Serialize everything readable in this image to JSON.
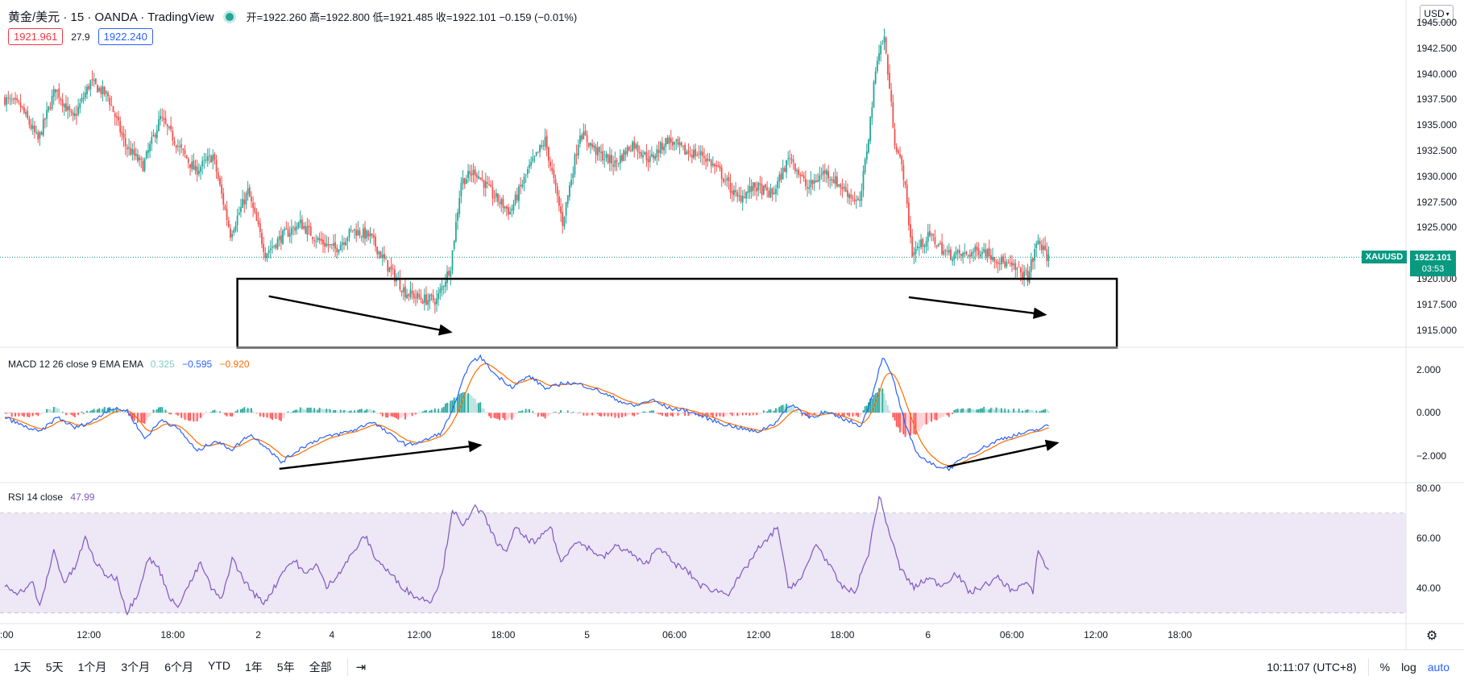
{
  "header": {
    "symbol": "黄金/美元 · 15 · OANDA · TradingView",
    "ohlc": "开=1922.260 高=1922.800 低=1921.485 收=1922.101 −0.159 (−0.01%)",
    "sell_price": "1921.961",
    "spread": "27.9",
    "buy_price": "1922.240",
    "currency": "USD"
  },
  "price_axis": {
    "ticks": [
      "1945.000",
      "1942.500",
      "1940.000",
      "1937.500",
      "1935.000",
      "1932.500",
      "1930.000",
      "1927.500",
      "1925.000",
      "1920.000",
      "1917.500",
      "1915.000"
    ],
    "tick_values": [
      1945,
      1942.5,
      1940,
      1937.5,
      1935,
      1932.5,
      1930,
      1927.5,
      1925,
      1920,
      1917.5,
      1915
    ],
    "symbol_tag": "XAUUSD",
    "last_price_tag": "1922.101",
    "countdown": "03:53"
  },
  "macd_pane": {
    "label": "MACD 12 26 close 9 EMA EMA",
    "hist_value": "0.325",
    "macd_value": "−0.595",
    "signal_value": "−0.920",
    "ticks": [
      "2.000",
      "0.000",
      "−2.000"
    ],
    "tick_values": [
      2,
      0,
      -2
    ]
  },
  "rsi_pane": {
    "label": "RSI 14 close",
    "value": "47.99",
    "ticks": [
      "80.00",
      "60.00",
      "40.00"
    ],
    "tick_values": [
      80,
      60,
      40
    ]
  },
  "time_axis": {
    "labels": [
      ":00",
      "12:00",
      "18:00",
      "2",
      "4",
      "12:00",
      "18:00",
      "5",
      "06:00",
      "12:00",
      "18:00",
      "6",
      "06:00",
      "12:00",
      "18:00"
    ],
    "bar_index": [
      0,
      48,
      96,
      145,
      187,
      237,
      285,
      333,
      383,
      431,
      479,
      528,
      576,
      624,
      672
    ]
  },
  "bottom_bar": {
    "ranges": [
      "1天",
      "5天",
      "1个月",
      "3个月",
      "6个月",
      "YTD",
      "1年",
      "5年",
      "全部"
    ],
    "clock": "10:11:07 (UTC+8)",
    "percent": "%",
    "log": "log",
    "auto": "auto"
  },
  "colors": {
    "up": "#26a69a",
    "down": "#ef5350",
    "macd_line": "#2962ff",
    "signal_line": "#ff6d00",
    "rsi_line": "#7e57c2",
    "rsi_band": "#ede7f6",
    "last_price": "#089981",
    "accent": "#2962ff"
  },
  "chart_data": {
    "type": "candlestick",
    "series_note": "",
    "price": {
      "ylim": [
        1913.4,
        1947.2
      ],
      "last": 1922.101,
      "box": {
        "bar_from": 133,
        "bar_to": 636,
        "low": 1913.3,
        "high": 1920
      },
      "arrows": [
        {
          "from": [
            151,
            1918.3
          ],
          "to": [
            255,
            1914.8
          ]
        },
        {
          "from": [
            517,
            1918.2
          ],
          "to": [
            595,
            1916.5
          ]
        }
      ],
      "anchors": [
        [
          0,
          1937.6
        ],
        [
          10,
          1936.8
        ],
        [
          20,
          1933.5
        ],
        [
          30,
          1938.6
        ],
        [
          40,
          1935.5
        ],
        [
          50,
          1939.2
        ],
        [
          60,
          1937.8
        ],
        [
          70,
          1933.0
        ],
        [
          80,
          1931.0
        ],
        [
          90,
          1935.7
        ],
        [
          100,
          1933.0
        ],
        [
          110,
          1930.5
        ],
        [
          120,
          1932.0
        ],
        [
          130,
          1924.4
        ],
        [
          140,
          1928.5
        ],
        [
          150,
          1922.5
        ],
        [
          160,
          1924.2
        ],
        [
          170,
          1925.4
        ],
        [
          180,
          1923.8
        ],
        [
          190,
          1922.9
        ],
        [
          200,
          1924.8
        ],
        [
          210,
          1924.1
        ],
        [
          220,
          1921.2
        ],
        [
          230,
          1918.7
        ],
        [
          240,
          1918.0
        ],
        [
          248,
          1917.9
        ],
        [
          256,
          1921.3
        ],
        [
          262,
          1929.5
        ],
        [
          270,
          1930.5
        ],
        [
          280,
          1928.2
        ],
        [
          290,
          1926.5
        ],
        [
          300,
          1930.5
        ],
        [
          310,
          1933.5
        ],
        [
          320,
          1925.5
        ],
        [
          330,
          1934.3
        ],
        [
          340,
          1932.3
        ],
        [
          350,
          1931.2
        ],
        [
          360,
          1933.2
        ],
        [
          370,
          1931.6
        ],
        [
          380,
          1933.6
        ],
        [
          390,
          1932.4
        ],
        [
          400,
          1932.1
        ],
        [
          410,
          1930.4
        ],
        [
          420,
          1927.8
        ],
        [
          430,
          1929.0
        ],
        [
          440,
          1928.2
        ],
        [
          450,
          1932.0
        ],
        [
          460,
          1928.8
        ],
        [
          470,
          1930.5
        ],
        [
          480,
          1928.9
        ],
        [
          490,
          1927.3
        ],
        [
          495,
          1934.0
        ],
        [
          500,
          1941.8
        ],
        [
          504,
          1943.5
        ],
        [
          510,
          1933.5
        ],
        [
          515,
          1930.2
        ],
        [
          520,
          1922.5
        ],
        [
          530,
          1924.2
        ],
        [
          540,
          1922.4
        ],
        [
          550,
          1922.3
        ],
        [
          560,
          1922.9
        ],
        [
          570,
          1921.8
        ],
        [
          580,
          1920.8
        ],
        [
          586,
          1920.2
        ],
        [
          592,
          1923.8
        ],
        [
          597,
          1922.101
        ]
      ]
    },
    "macd": {
      "ylim": [
        -3.2,
        3.0
      ],
      "anchors": [
        [
          0,
          -0.2
        ],
        [
          10,
          -0.6
        ],
        [
          20,
          -0.9
        ],
        [
          30,
          -0.2
        ],
        [
          40,
          -0.7
        ],
        [
          50,
          -0.4
        ],
        [
          60,
          0.2
        ],
        [
          70,
          0.1
        ],
        [
          80,
          -1.2
        ],
        [
          90,
          -0.3
        ],
        [
          100,
          -0.8
        ],
        [
          110,
          -1.8
        ],
        [
          120,
          -1.3
        ],
        [
          130,
          -1.7
        ],
        [
          140,
          -1.0
        ],
        [
          150,
          -1.6
        ],
        [
          158,
          -2.3
        ],
        [
          170,
          -1.6
        ],
        [
          180,
          -1.2
        ],
        [
          190,
          -1.0
        ],
        [
          200,
          -0.8
        ],
        [
          210,
          -0.4
        ],
        [
          220,
          -1.0
        ],
        [
          230,
          -1.5
        ],
        [
          240,
          -1.3
        ],
        [
          250,
          -0.9
        ],
        [
          258,
          0.5
        ],
        [
          265,
          2.2
        ],
        [
          272,
          2.6
        ],
        [
          280,
          1.8
        ],
        [
          290,
          1.2
        ],
        [
          300,
          1.7
        ],
        [
          310,
          1.1
        ],
        [
          320,
          1.4
        ],
        [
          330,
          1.3
        ],
        [
          340,
          1.0
        ],
        [
          350,
          0.6
        ],
        [
          360,
          0.3
        ],
        [
          370,
          0.6
        ],
        [
          380,
          0.2
        ],
        [
          390,
          0.1
        ],
        [
          400,
          -0.2
        ],
        [
          410,
          -0.5
        ],
        [
          420,
          -0.7
        ],
        [
          430,
          -0.9
        ],
        [
          440,
          -0.5
        ],
        [
          450,
          0.4
        ],
        [
          460,
          -0.2
        ],
        [
          470,
          0.0
        ],
        [
          480,
          -0.3
        ],
        [
          490,
          -0.6
        ],
        [
          496,
          0.8
        ],
        [
          502,
          2.6
        ],
        [
          508,
          1.6
        ],
        [
          515,
          -0.6
        ],
        [
          522,
          -1.9
        ],
        [
          530,
          -2.4
        ],
        [
          540,
          -2.6
        ],
        [
          550,
          -2.0
        ],
        [
          560,
          -1.6
        ],
        [
          570,
          -1.2
        ],
        [
          580,
          -1.0
        ],
        [
          590,
          -0.8
        ],
        [
          597,
          -0.595
        ]
      ],
      "arrows": [
        {
          "from": [
            157,
            -2.6
          ],
          "to": [
            272,
            -1.5
          ]
        },
        {
          "from": [
            539,
            -2.5
          ],
          "to": [
            602,
            -1.4
          ]
        }
      ]
    },
    "rsi": {
      "ylim": [
        26,
        82
      ],
      "band": [
        30,
        70
      ],
      "mid": 50,
      "anchors": [
        [
          0,
          41
        ],
        [
          8,
          38
        ],
        [
          16,
          42
        ],
        [
          20,
          32
        ],
        [
          28,
          55
        ],
        [
          34,
          42
        ],
        [
          40,
          48
        ],
        [
          46,
          60
        ],
        [
          52,
          50
        ],
        [
          58,
          45
        ],
        [
          64,
          44
        ],
        [
          70,
          30
        ],
        [
          76,
          38
        ],
        [
          82,
          52
        ],
        [
          88,
          48
        ],
        [
          94,
          37
        ],
        [
          98,
          32
        ],
        [
          106,
          42
        ],
        [
          112,
          50
        ],
        [
          118,
          40
        ],
        [
          124,
          35
        ],
        [
          130,
          52
        ],
        [
          136,
          44
        ],
        [
          142,
          38
        ],
        [
          148,
          34
        ],
        [
          154,
          40
        ],
        [
          160,
          48
        ],
        [
          166,
          51
        ],
        [
          172,
          45
        ],
        [
          178,
          50
        ],
        [
          184,
          40
        ],
        [
          192,
          47
        ],
        [
          200,
          55
        ],
        [
          206,
          61
        ],
        [
          212,
          52
        ],
        [
          220,
          46
        ],
        [
          228,
          40
        ],
        [
          236,
          36
        ],
        [
          244,
          35
        ],
        [
          250,
          45
        ],
        [
          256,
          72
        ],
        [
          262,
          64
        ],
        [
          268,
          73
        ],
        [
          274,
          69
        ],
        [
          280,
          60
        ],
        [
          286,
          54
        ],
        [
          292,
          64
        ],
        [
          298,
          60
        ],
        [
          304,
          58
        ],
        [
          312,
          65
        ],
        [
          318,
          50
        ],
        [
          326,
          59
        ],
        [
          334,
          56
        ],
        [
          342,
          52
        ],
        [
          350,
          57
        ],
        [
          358,
          54
        ],
        [
          366,
          49
        ],
        [
          374,
          57
        ],
        [
          382,
          50
        ],
        [
          390,
          47
        ],
        [
          398,
          41
        ],
        [
          406,
          39
        ],
        [
          414,
          38
        ],
        [
          422,
          46
        ],
        [
          430,
          55
        ],
        [
          436,
          59
        ],
        [
          442,
          65
        ],
        [
          448,
          40
        ],
        [
          456,
          44
        ],
        [
          464,
          58
        ],
        [
          470,
          51
        ],
        [
          478,
          41
        ],
        [
          486,
          38
        ],
        [
          494,
          54
        ],
        [
          500,
          77
        ],
        [
          506,
          62
        ],
        [
          512,
          48
        ],
        [
          520,
          40
        ],
        [
          528,
          44
        ],
        [
          536,
          41
        ],
        [
          544,
          46
        ],
        [
          552,
          38
        ],
        [
          560,
          41
        ],
        [
          568,
          44
        ],
        [
          576,
          39
        ],
        [
          584,
          42
        ],
        [
          588,
          38
        ],
        [
          591,
          56
        ],
        [
          595,
          48.5
        ],
        [
          597,
          47.99
        ]
      ]
    }
  }
}
